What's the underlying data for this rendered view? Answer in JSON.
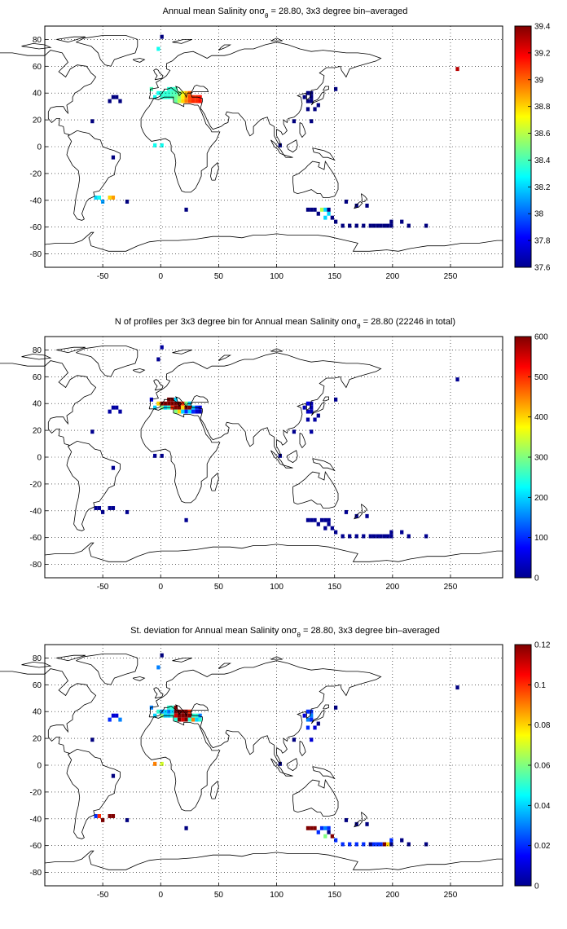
{
  "panels": [
    {
      "title": "Annual mean Salinity on",
      "sigma": "σ",
      "sigma_sub": "θ",
      "title_tail": " = 28.80, 3x3 degree bin–averaged",
      "xticks": [
        "-50",
        "0",
        "50",
        "100",
        "150",
        "200",
        "250"
      ],
      "yticks": [
        "80",
        "60",
        "40",
        "20",
        "0",
        "-20",
        "-40",
        "-60",
        "-80"
      ],
      "colorbar": {
        "ticks": [
          "39.4",
          "39.2",
          "39",
          "38.8",
          "38.6",
          "38.4",
          "38.2",
          "38",
          "37.8",
          "37.6"
        ],
        "min": 37.6,
        "max": 39.4
      }
    },
    {
      "title": "N of profiles per 3x3 degree bin for Annual mean Salinity on",
      "sigma": "σ",
      "sigma_sub": "θ",
      "title_tail": " = 28.80 (22246 in total)",
      "xticks": [
        "-50",
        "0",
        "50",
        "100",
        "150",
        "200",
        "250"
      ],
      "yticks": [
        "80",
        "60",
        "40",
        "20",
        "0",
        "-20",
        "-40",
        "-60",
        "-80"
      ],
      "colorbar": {
        "ticks": [
          "600",
          "500",
          "400",
          "300",
          "200",
          "100",
          "0"
        ],
        "min": 0,
        "max": 600
      }
    },
    {
      "title": "St. deviation for Annual mean Salinity on",
      "sigma": "σ",
      "sigma_sub": "θ",
      "title_tail": " = 28.80, 3x3 degree bin–averaged",
      "xticks": [
        "-50",
        "0",
        "50",
        "100",
        "150",
        "200",
        "250"
      ],
      "yticks": [
        "80",
        "60",
        "40",
        "20",
        "0",
        "-20",
        "-40",
        "-60",
        "-80"
      ],
      "colorbar": {
        "ticks": [
          "0.12",
          "0.1",
          "0.08",
          "0.06",
          "0.04",
          "0.02",
          "0"
        ],
        "min": 0,
        "max": 0.12
      }
    }
  ],
  "map_bins": {
    "lon_range": [
      -100,
      295
    ],
    "lat_range": [
      -90,
      90
    ],
    "bin_deg": 3,
    "bins": [
      {
        "lon": 1,
        "lat": 82,
        "v": [
          37.6,
          20,
          0.0
        ]
      },
      {
        "lon": -2,
        "lat": 73,
        "v": [
          38.3,
          10,
          0.03
        ]
      },
      {
        "lon": -8,
        "lat": 43,
        "v": [
          38.4,
          60,
          0.03
        ]
      },
      {
        "lon": -5,
        "lat": 37,
        "v": [
          38.3,
          200,
          0.04
        ]
      },
      {
        "lon": -2,
        "lat": 40,
        "v": [
          38.3,
          400,
          0.05
        ]
      },
      {
        "lon": 1,
        "lat": 40,
        "v": [
          38.35,
          600,
          0.03
        ]
      },
      {
        "lon": 4,
        "lat": 40,
        "v": [
          38.35,
          600,
          0.04
        ]
      },
      {
        "lon": 1,
        "lat": 37,
        "v": [
          38.35,
          300,
          0.06
        ]
      },
      {
        "lon": 4,
        "lat": 37,
        "v": [
          38.35,
          200,
          0.04
        ]
      },
      {
        "lon": 7,
        "lat": 43,
        "v": [
          38.35,
          600,
          0.05
        ]
      },
      {
        "lon": 7,
        "lat": 40,
        "v": [
          38.35,
          600,
          0.03
        ]
      },
      {
        "lon": 7,
        "lat": 37,
        "v": [
          38.35,
          250,
          0.04
        ]
      },
      {
        "lon": 10,
        "lat": 43,
        "v": [
          38.35,
          600,
          0.05
        ]
      },
      {
        "lon": 10,
        "lat": 40,
        "v": [
          38.4,
          600,
          0.04
        ]
      },
      {
        "lon": 10,
        "lat": 37,
        "v": [
          38.4,
          500,
          0.05
        ]
      },
      {
        "lon": 13,
        "lat": 43,
        "v": [
          38.4,
          200,
          0.12
        ]
      },
      {
        "lon": 13,
        "lat": 40,
        "v": [
          38.4,
          600,
          0.12
        ]
      },
      {
        "lon": 13,
        "lat": 37,
        "v": [
          38.45,
          600,
          0.11
        ]
      },
      {
        "lon": 13,
        "lat": 34,
        "v": [
          38.45,
          300,
          0.05
        ]
      },
      {
        "lon": 16,
        "lat": 40,
        "v": [
          38.5,
          600,
          0.12
        ]
      },
      {
        "lon": 16,
        "lat": 37,
        "v": [
          38.55,
          600,
          0.12
        ]
      },
      {
        "lon": 16,
        "lat": 34,
        "v": [
          38.6,
          400,
          0.12
        ]
      },
      {
        "lon": 19,
        "lat": 40,
        "v": [
          38.7,
          500,
          0.12
        ]
      },
      {
        "lon": 19,
        "lat": 37,
        "v": [
          38.75,
          400,
          0.12
        ]
      },
      {
        "lon": 19,
        "lat": 34,
        "v": [
          38.8,
          200,
          0.11
        ]
      },
      {
        "lon": 22,
        "lat": 40,
        "v": [
          38.85,
          300,
          0.12
        ]
      },
      {
        "lon": 22,
        "lat": 37,
        "v": [
          38.9,
          600,
          0.12
        ]
      },
      {
        "lon": 22,
        "lat": 34,
        "v": [
          38.95,
          100,
          0.12
        ]
      },
      {
        "lon": 25,
        "lat": 40,
        "v": [
          39.0,
          200,
          0.1
        ]
      },
      {
        "lon": 25,
        "lat": 37,
        "v": [
          39.05,
          600,
          0.12
        ]
      },
      {
        "lon": 25,
        "lat": 34,
        "v": [
          39.05,
          200,
          0.05
        ]
      },
      {
        "lon": 28,
        "lat": 37,
        "v": [
          39.1,
          200,
          0.05
        ]
      },
      {
        "lon": 28,
        "lat": 34,
        "v": [
          39.1,
          100,
          0.09
        ]
      },
      {
        "lon": 31,
        "lat": 37,
        "v": [
          39.1,
          100,
          0.05
        ]
      },
      {
        "lon": 31,
        "lat": 34,
        "v": [
          39.1,
          50,
          0.04
        ]
      },
      {
        "lon": 34,
        "lat": 37,
        "v": [
          39.15,
          50,
          0.03
        ]
      },
      {
        "lon": 34,
        "lat": 34,
        "v": [
          39.15,
          30,
          0.05
        ]
      },
      {
        "lon": -44,
        "lat": 34,
        "v": [
          37.6,
          20,
          0.02
        ]
      },
      {
        "lon": -41,
        "lat": 37,
        "v": [
          37.6,
          20,
          0.01
        ]
      },
      {
        "lon": -38,
        "lat": 37,
        "v": [
          37.6,
          20,
          0.01
        ]
      },
      {
        "lon": -35,
        "lat": 34,
        "v": [
          37.6,
          20,
          0.03
        ]
      },
      {
        "lon": -59,
        "lat": 19,
        "v": [
          37.6,
          10,
          0.0
        ]
      },
      {
        "lon": -41,
        "lat": -8,
        "v": [
          37.6,
          10,
          0.0
        ]
      },
      {
        "lon": -5,
        "lat": 1,
        "v": [
          38.3,
          10,
          0.09
        ]
      },
      {
        "lon": 1,
        "lat": 1,
        "v": [
          38.3,
          10,
          0.07
        ]
      },
      {
        "lon": -56,
        "lat": -38,
        "v": [
          38.2,
          10,
          0.02
        ]
      },
      {
        "lon": -53,
        "lat": -38,
        "v": [
          38.3,
          10,
          0.1
        ]
      },
      {
        "lon": -50,
        "lat": -41,
        "v": [
          38.1,
          10,
          0.12
        ]
      },
      {
        "lon": -44,
        "lat": -38,
        "v": [
          38.8,
          10,
          0.12
        ]
      },
      {
        "lon": -41,
        "lat": -38,
        "v": [
          38.9,
          10,
          0.12
        ]
      },
      {
        "lon": -29,
        "lat": -41,
        "v": [
          37.6,
          10,
          0.0
        ]
      },
      {
        "lon": 22,
        "lat": -47,
        "v": [
          37.6,
          10,
          0.0
        ]
      },
      {
        "lon": 115,
        "lat": 19,
        "v": [
          37.6,
          10,
          0.0
        ]
      },
      {
        "lon": 124,
        "lat": 37,
        "v": [
          37.6,
          30,
          0.01
        ]
      },
      {
        "lon": 127,
        "lat": 40,
        "v": [
          37.6,
          60,
          0.02
        ]
      },
      {
        "lon": 130,
        "lat": 40,
        "v": [
          37.6,
          40,
          0.02
        ]
      },
      {
        "lon": 130,
        "lat": 37,
        "v": [
          37.6,
          30,
          0.03
        ]
      },
      {
        "lon": 127,
        "lat": 34,
        "v": [
          37.6,
          40,
          0.03
        ]
      },
      {
        "lon": 130,
        "lat": 34,
        "v": [
          37.6,
          30,
          0.02
        ]
      },
      {
        "lon": 127,
        "lat": 28,
        "v": [
          37.6,
          20,
          0.02
        ]
      },
      {
        "lon": 130,
        "lat": 19,
        "v": [
          37.6,
          20,
          0.01
        ]
      },
      {
        "lon": 133,
        "lat": 28,
        "v": [
          37.6,
          20,
          0.01
        ]
      },
      {
        "lon": 136,
        "lat": 31,
        "v": [
          37.6,
          10,
          0.0
        ]
      },
      {
        "lon": 151,
        "lat": 43,
        "v": [
          37.6,
          10,
          0.0
        ]
      },
      {
        "lon": 103,
        "lat": 1,
        "v": [
          37.6,
          10,
          0.0
        ]
      },
      {
        "lon": 127,
        "lat": -47,
        "v": [
          37.6,
          10,
          0.12
        ]
      },
      {
        "lon": 130,
        "lat": -47,
        "v": [
          37.6,
          10,
          0.12
        ]
      },
      {
        "lon": 133,
        "lat": -47,
        "v": [
          37.6,
          10,
          0.12
        ]
      },
      {
        "lon": 136,
        "lat": -50,
        "v": [
          37.6,
          10,
          0.02
        ]
      },
      {
        "lon": 139,
        "lat": -47,
        "v": [
          38.6,
          10,
          0.02
        ]
      },
      {
        "lon": 142,
        "lat": -47,
        "v": [
          38.2,
          10,
          0.03
        ]
      },
      {
        "lon": 142,
        "lat": -53,
        "v": [
          38.2,
          10,
          0.06
        ]
      },
      {
        "lon": 145,
        "lat": -50,
        "v": [
          38.2,
          10,
          0.0
        ]
      },
      {
        "lon": 145,
        "lat": -47,
        "v": [
          37.6,
          10,
          0.02
        ]
      },
      {
        "lon": 148,
        "lat": -53,
        "v": [
          37.6,
          10,
          0.12
        ]
      },
      {
        "lon": 151,
        "lat": -56,
        "v": [
          37.6,
          10,
          0.02
        ]
      },
      {
        "lon": 157,
        "lat": -59,
        "v": [
          37.6,
          10,
          0.02
        ]
      },
      {
        "lon": 160,
        "lat": -41,
        "v": [
          37.6,
          10,
          0.0
        ]
      },
      {
        "lon": 169,
        "lat": -44,
        "v": [
          37.6,
          10,
          0.0
        ]
      },
      {
        "lon": 163,
        "lat": -59,
        "v": [
          37.6,
          10,
          0.02
        ]
      },
      {
        "lon": 169,
        "lat": -59,
        "v": [
          37.6,
          10,
          0.02
        ]
      },
      {
        "lon": 178,
        "lat": -44,
        "v": [
          37.6,
          10,
          0.0
        ]
      },
      {
        "lon": 175,
        "lat": -59,
        "v": [
          37.6,
          10,
          0.02
        ]
      },
      {
        "lon": 181,
        "lat": -59,
        "v": [
          37.6,
          10,
          0.0
        ]
      },
      {
        "lon": 184,
        "lat": -59,
        "v": [
          37.6,
          10,
          0.02
        ]
      },
      {
        "lon": 187,
        "lat": -59,
        "v": [
          37.6,
          10,
          0.02
        ]
      },
      {
        "lon": 190,
        "lat": -59,
        "v": [
          37.6,
          10,
          0.02
        ]
      },
      {
        "lon": 193,
        "lat": -59,
        "v": [
          37.6,
          10,
          0.12
        ]
      },
      {
        "lon": 196,
        "lat": -59,
        "v": [
          37.6,
          10,
          0.08
        ]
      },
      {
        "lon": 199,
        "lat": -56,
        "v": [
          37.6,
          10,
          0.02
        ]
      },
      {
        "lon": 199,
        "lat": -59,
        "v": [
          37.6,
          10,
          0.0
        ]
      },
      {
        "lon": 208,
        "lat": -56,
        "v": [
          37.6,
          10,
          0.0
        ]
      },
      {
        "lon": 214,
        "lat": -59,
        "v": [
          37.6,
          10,
          0.0
        ]
      },
      {
        "lon": 229,
        "lat": -59,
        "v": [
          37.6,
          10,
          0.0
        ]
      },
      {
        "lon": 256,
        "lat": 58,
        "v": [
          39.3,
          10,
          0.0
        ]
      }
    ]
  }
}
